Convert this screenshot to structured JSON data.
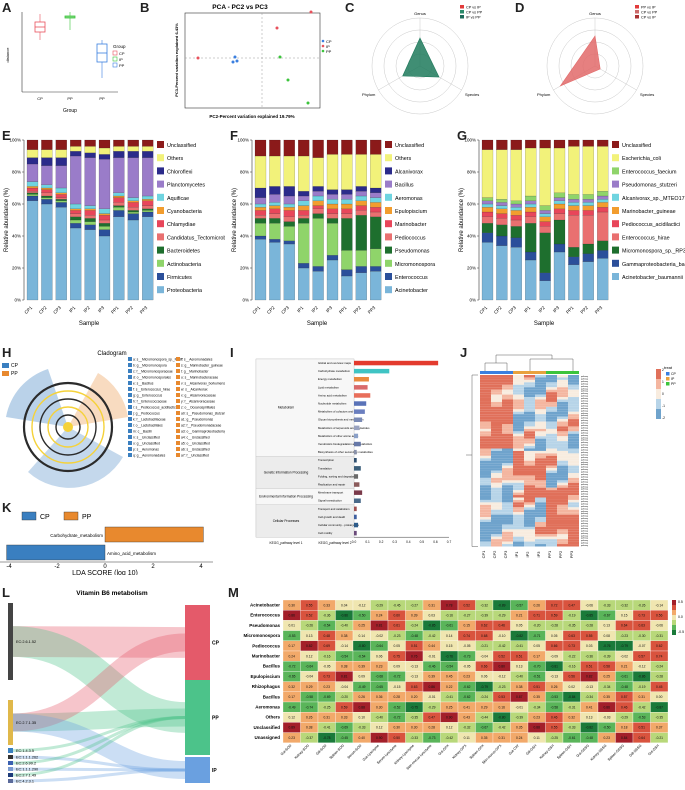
{
  "panels": {
    "A": {
      "label": "A",
      "ylabel": "distance",
      "xlabel": "Group",
      "ticks": [
        "CP",
        "PP",
        "PP"
      ],
      "legend_title": "Group",
      "legend": [
        "CP",
        "IP",
        "PP"
      ],
      "colors": [
        "#e8515c",
        "#3cc43c",
        "#3a7fe0"
      ]
    },
    "B": {
      "label": "B",
      "title": "PCA - PC2 vs PC3",
      "xlabel": "PC2-Percent variation explained 19.79%",
      "ylabel": "PC3-Percent variation explained 6.43%",
      "legend": [
        "CP",
        "IP",
        "PP"
      ],
      "colors": [
        "#3a7fe0",
        "#e8515c",
        "#3cc43c"
      ]
    },
    "C": {
      "label": "C",
      "axes": [
        "Genus",
        "Species",
        "Phylum"
      ],
      "legend": [
        "CP vs IP",
        "CP vs PP",
        "IP vs PP"
      ],
      "legend_colors": [
        "#e23b3b",
        "#2a8a6a",
        "#1d6b5a"
      ],
      "fill": "#1f7a5c"
    },
    "D": {
      "label": "D",
      "axes": [
        "Genus",
        "Species",
        "Phylum"
      ],
      "legend": [
        "PP vs IP",
        "CP vs PP",
        "CP vs IP"
      ],
      "legend_colors": [
        "#e23b3b",
        "#cc6a6a",
        "#aa3333"
      ],
      "fill": "#e26a6a"
    },
    "E": {
      "label": "E",
      "ylabel": "Relative abundance (%)",
      "xlabel": "Sample",
      "samples": [
        "CP1",
        "CP2",
        "CP3",
        "IP1",
        "IP2",
        "IP3",
        "PP1",
        "PP2",
        "PP3"
      ],
      "legend": [
        "Unclassified",
        "Others",
        "Chloroflexi",
        "Planctomycetes",
        "Aquificae",
        "Cyanobacteria",
        "Chlamydiae",
        "Candidatus_Tectomicrobia",
        "Bacteroidetes",
        "Actinobacteria",
        "Firmicutes",
        "Proteobacteria"
      ]
    },
    "F": {
      "label": "F",
      "ylabel": "Relative abundance (%)",
      "xlabel": "Sample",
      "samples": [
        "CP1",
        "CP2",
        "CP3",
        "IP1",
        "IP2",
        "IP3",
        "PP1",
        "PP2",
        "PP3"
      ],
      "legend": [
        "Unclassified",
        "Others",
        "Alcanivorax",
        "Bacillus",
        "Aeromonas",
        "Epulopiscium",
        "Marinobacter",
        "Pediococcus",
        "Pseudomonas",
        "Micromonospora",
        "Enterococcus",
        "Acinetobacter"
      ]
    },
    "G": {
      "label": "G",
      "ylabel": "Relative abundance (%)",
      "xlabel": "Sample",
      "samples": [
        "CP1",
        "CP2",
        "CP3",
        "IP1",
        "IP2",
        "IP3",
        "PP1",
        "PP2",
        "PP3"
      ],
      "legend": [
        "Unclassified",
        "Escherichia_coli",
        "Enterococcus_faecium",
        "Pseudomonas_stutzeri",
        "Alcanivorax_sp._MTEO17",
        "Marinobacter_guineae",
        "Pediococcus_acidilactici",
        "Enterococcus_hirae",
        "Micromonospora_sp._RP3T",
        "Gammaproteobacteria_bacterium",
        "Acinetobacter_baumannii"
      ]
    },
    "H": {
      "label": "H",
      "title": "Cladogram",
      "legend": [
        "CP",
        "PP"
      ],
      "clade_left": [
        "a: s__Micromonospora_sp._RP3T",
        "b: g__Micromonospora",
        "c: f__Micromonosporaceae",
        "d: o__Micromonosporales",
        "e: s__Bacillus",
        "f: s__Enterococcus_hirae",
        "g: g__Enterococcus",
        "h: f__Enterococcaceae",
        "i: s__Pediococcus_acidilactici",
        "j: g__Pediococcus",
        "k: f__Lactobacillaceae",
        "l: o__Lactobacillales",
        "m: c__Bacilli",
        "n: s__Unclassified",
        "o: g__Unclassified",
        "p: s__Aeromonas",
        "q: g__Aeromonadales"
      ],
      "clade_right": [
        "r: s__Aeromonadales",
        "s: g__Marinobacter_guineae",
        "t: g__Marinobacter",
        "u: s__Marinobacteraceae",
        "v: s__Alcanivorax_borkumensis",
        "w: s__Alcanivorax",
        "x: g__Alcanivoracaceae",
        "y: f__Alcanivoracaceae",
        "z: o__Oceanospirillales",
        "a0: s__Pseudomonas_stutzeri",
        "a1: g__Pseudomonas",
        "a2: f__Pseudomonadaceae",
        "a3: o__Gammaproteobacteria_bacterium",
        "a4: c__Unclassified",
        "a5: o__Unclassified",
        "a6: s__Unclassified",
        "a7: f__Unclassified"
      ]
    },
    "I": {
      "label": "I",
      "left_header": "KEGG_pathway level 1",
      "mid_header": "KEGG_pathway level 2",
      "groups": [
        "Metabolism",
        "Genetic Information Processing",
        "Environmental Information Processing",
        "Cellular Processes"
      ],
      "pathways": [
        "Global and overview maps",
        "Carbohydrate metabolism",
        "Energy metabolism",
        "Lipid metabolism",
        "Amino acid metabolism",
        "Nucleotide metabolism",
        "Metabolism of cofactors and vitamins",
        "Glycan biosynthesis and metabolism",
        "Metabolism of terpenoids and polyketides",
        "Metabolism of other amino acids",
        "Xenobiotics biodegradation and metabolism",
        "Biosynthesis of other secondary metabolites",
        "Transcription",
        "Translation",
        "Folding, sorting and degradation",
        "Replication and repair",
        "Membrane transport",
        "Signal transduction",
        "Transport and catabolism",
        "Cell growth and death",
        "Cellular community - prokaryotes",
        "Cell motility"
      ],
      "values": [
        0.62,
        0.26,
        0.11,
        0.1,
        0.12,
        0.09,
        0.08,
        0.06,
        0.04,
        0.03,
        0.05,
        0.02,
        0.02,
        0.05,
        0.03,
        0.04,
        0.06,
        0.05,
        0.02,
        0.02,
        0.03,
        0.02
      ],
      "bar_colors": [
        "#e33b2e",
        "#3fc4c4",
        "#e98a3e",
        "#d96b6b",
        "#e86e5a",
        "#5a73b8",
        "#6b7fbf",
        "#7a8ab5",
        "#9aa3c0",
        "#8aa0c8",
        "#6678a8",
        "#8a92aa",
        "#2f4f6f",
        "#3b5e7a",
        "#6a6a6a",
        "#8b5b5b",
        "#7a3a4a",
        "#4a6a8a",
        "#a05050",
        "#4060a0",
        "#2e5c8a",
        "#6a4a7a"
      ],
      "xticks": [
        "0.0",
        "0.1",
        "0.2",
        "0.3",
        "0.4",
        "0.5",
        "0.6",
        "0.7"
      ]
    },
    "J": {
      "label": "J",
      "legend_title": "treat",
      "legend": [
        "CP",
        "IP",
        "PP"
      ],
      "legend_colors": [
        "#3a7fe0",
        "#e8a23e",
        "#3cc43c"
      ],
      "scale": [
        "2",
        "1",
        "0",
        "-1",
        "-2"
      ],
      "cols": [
        "CP1",
        "CP2",
        "CP3",
        "IP1",
        "IP2",
        "IP3",
        "PP1",
        "PP2",
        "PP3"
      ]
    },
    "K": {
      "label": "K",
      "legend": [
        "CP",
        "PP"
      ],
      "colors": [
        "#3a7fc0",
        "#e8892e"
      ],
      "xlabel": "LDA SCORE (log 10)",
      "xticks": [
        "-4",
        "-2",
        "0",
        "2",
        "4"
      ],
      "bars": [
        {
          "name": "Carbohydrate_metabolism",
          "value": 4.1
        },
        {
          "name": "Amino_acid_metabolism",
          "value": -4.1
        }
      ]
    },
    "L": {
      "label": "L",
      "title": "Vitamin B6 metabolism",
      "left_nodes": [
        "EC:2.6.1.52",
        "EC:2.7.1.35",
        "EC:1.4.3.5",
        "EC:1.1.1.262",
        "EC:2.6.99.2",
        "EC:1.1.1.290",
        "EC:2.7.1.49",
        "EC:4.2.3.1"
      ],
      "right_nodes": [
        "CP",
        "PP",
        "IP"
      ],
      "right_colors": [
        "#e45a6a",
        "#4cc38a",
        "#6aa0e0"
      ]
    },
    "M": {
      "label": "M",
      "rows": [
        "Acinetobacter",
        "Enterococcus",
        "Pseudomonas",
        "Micromonospora",
        "Pediococcus",
        "Marinobacter",
        "Bacillus",
        "Epulopiscium",
        "Rhizophagus",
        "Bacillus",
        "Aeromonas",
        "Others",
        "Unclassified",
        "Unassigned"
      ],
      "cols": [
        "Gut-SOD",
        "Kidney-SOD",
        "Gill-SOD",
        "Spleen-SOD",
        "Serum-SOD",
        "Gut-Lysozyme",
        "Serum-Lysozyme",
        "Kidney-Lysozyme",
        "Skin-mucus-Lysozyme",
        "Gut-GPX",
        "Kidney-GPX",
        "Spleen-GPX",
        "Skin-mucus-GPX",
        "Gut-CAT",
        "Gill-GSH",
        "Kidney-GSH",
        "Spleen-GSH",
        "Gut-GSSG",
        "Kidney-GSSG",
        "Spleen-GSSG",
        "Gill-GSSG",
        "Gut-GSH"
      ],
      "scale": [
        "0.5",
        "0.0",
        "-0.5"
      ]
    }
  }
}
